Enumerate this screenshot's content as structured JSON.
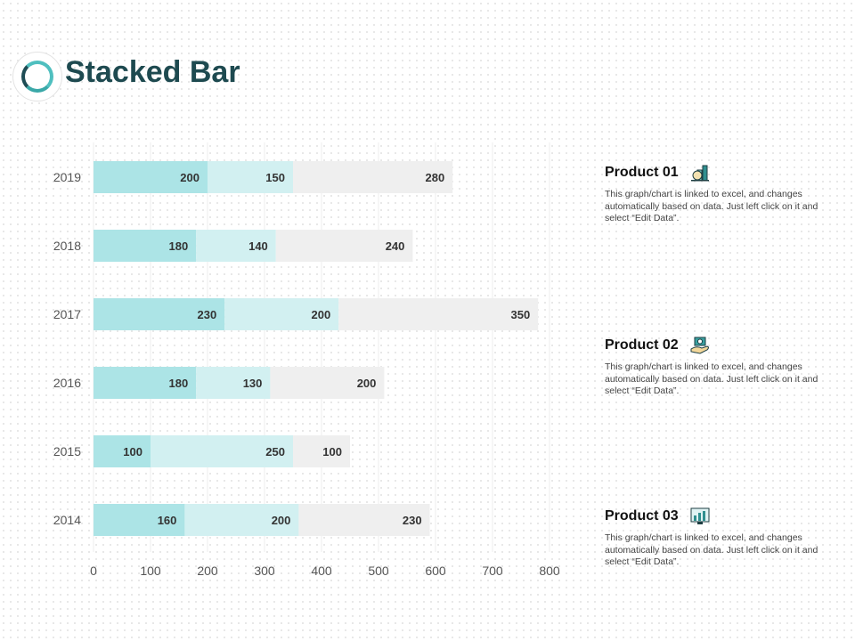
{
  "title": "Stacked Bar",
  "colors": {
    "series1": "#ace4e6",
    "series2": "#d2f0f1",
    "series3": "#efefef",
    "title": "#1e4a50"
  },
  "chart_data": {
    "type": "bar",
    "orientation": "horizontal",
    "stacked": true,
    "categories": [
      "2014",
      "2015",
      "2016",
      "2017",
      "2018",
      "2019"
    ],
    "series": [
      {
        "values": [
          160,
          100,
          180,
          230,
          180,
          200
        ]
      },
      {
        "values": [
          200,
          250,
          130,
          200,
          140,
          150
        ]
      },
      {
        "values": [
          230,
          100,
          200,
          350,
          240,
          280
        ]
      }
    ],
    "xlim": [
      0,
      800
    ],
    "xticks": [
      "0",
      "100",
      "200",
      "300",
      "400",
      "500",
      "600",
      "700",
      "800"
    ],
    "grid": true
  },
  "products": [
    {
      "name": "Product 01",
      "icon": "money-bag-chart-icon",
      "text": "This graph/chart is linked to excel, and changes automatically based on data. Just left click on it and select “Edit Data”."
    },
    {
      "name": "Product 02",
      "icon": "hand-money-icon",
      "text": "This graph/chart is linked to excel, and changes automatically based on data. Just left click on it and select “Edit Data”."
    },
    {
      "name": "Product 03",
      "icon": "monitor-chart-icon",
      "text": "This graph/chart is linked to excel, and changes automatically based on data. Just left click on it and select “Edit Data”."
    }
  ]
}
